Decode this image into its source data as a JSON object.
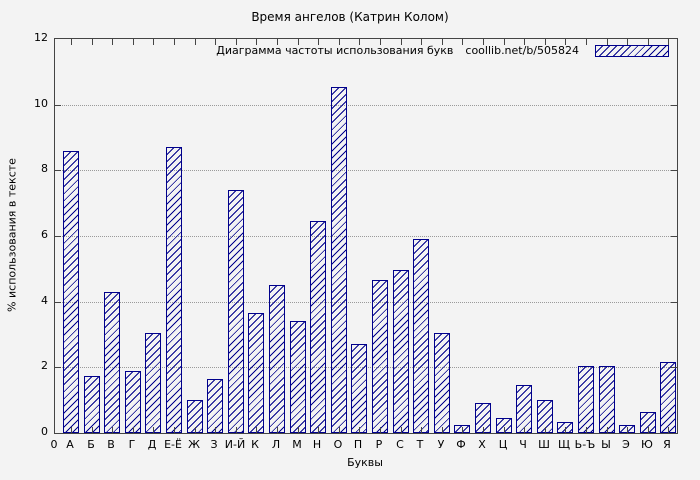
{
  "chart_data": {
    "type": "bar",
    "title": "Время ангелов (Катрин Колом)",
    "xlabel": "Буквы",
    "ylabel": "% использования в тексте",
    "legend": "Диаграмма частоты использования букв",
    "legend_source": "coollib.net/b/505824",
    "legend_position": "top-right",
    "origin_label": "0",
    "categories": [
      "А",
      "Б",
      "В",
      "Г",
      "Д",
      "Е-Ё",
      "Ж",
      "З",
      "И-Й",
      "К",
      "Л",
      "М",
      "Н",
      "О",
      "П",
      "Р",
      "С",
      "Т",
      "У",
      "Ф",
      "Х",
      "Ц",
      "Ч",
      "Ш",
      "Щ",
      "Ь-Ъ",
      "Ы",
      "Э",
      "Ю",
      "Я"
    ],
    "values": [
      8.6,
      1.75,
      4.3,
      1.9,
      3.05,
      8.7,
      1.0,
      1.65,
      7.4,
      3.65,
      4.5,
      3.4,
      6.45,
      10.55,
      2.7,
      4.65,
      4.95,
      5.9,
      3.05,
      0.25,
      0.9,
      0.45,
      1.45,
      1.0,
      0.35,
      2.05,
      2.05,
      0.25,
      0.65,
      2.15
    ],
    "ylim": [
      0,
      12
    ],
    "yticks": [
      0,
      2,
      4,
      6,
      8,
      10,
      12
    ],
    "grid": "horizontal-dotted",
    "bar_color": "#00008b",
    "bar_fill_style": "diagonal-hatch",
    "background_color": "#f3f3f3",
    "axis_color": "#444444"
  }
}
